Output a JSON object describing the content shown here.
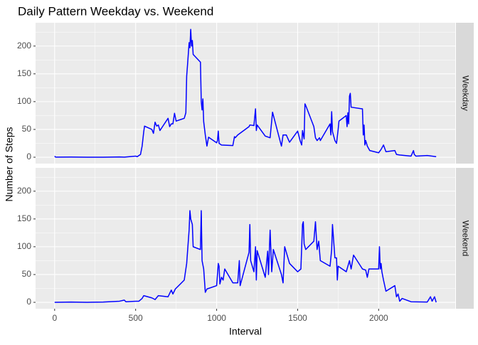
{
  "chart_data": {
    "type": "line",
    "title": "Daily Pattern Weekday vs. Weekend",
    "x_label": "Interval",
    "y_label": "Number of Steps",
    "xlim": [
      -117.75,
      2472.75
    ],
    "xticks": [
      0,
      500,
      1000,
      1500,
      2000
    ],
    "ylim": [
      -11.5,
      241.9
    ],
    "yticks": [
      0,
      50,
      100,
      150,
      200
    ],
    "grid": true,
    "series": [
      {
        "name": "Weekday",
        "color": "#0000ff",
        "x": [
          0,
          5,
          10,
          100,
          200,
          300,
          400,
          430,
          500,
          510,
          520,
          530,
          540,
          550,
          555,
          600,
          610,
          620,
          630,
          640,
          650,
          700,
          710,
          720,
          730,
          740,
          750,
          800,
          810,
          815,
          820,
          830,
          835,
          840,
          845,
          850,
          855,
          900,
          905,
          910,
          915,
          920,
          930,
          940,
          950,
          1000,
          1005,
          1010,
          1015,
          1030,
          1100,
          1110,
          1115,
          1130,
          1200,
          1205,
          1230,
          1240,
          1245,
          1250,
          1300,
          1330,
          1345,
          1400,
          1410,
          1430,
          1450,
          1500,
          1515,
          1525,
          1530,
          1540,
          1545,
          1550,
          1600,
          1610,
          1620,
          1635,
          1640,
          1700,
          1705,
          1710,
          1715,
          1730,
          1740,
          1750,
          1755,
          1800,
          1805,
          1810,
          1815,
          1820,
          1825,
          1830,
          1900,
          1905,
          1910,
          1915,
          1920,
          1930,
          1945,
          2000,
          2015,
          2030,
          2045,
          2100,
          2110,
          2130,
          2200,
          2215,
          2220,
          2230,
          2300,
          2330,
          2355
        ],
        "values": [
          2,
          0.4,
          0.2,
          0.4,
          0,
          0.1,
          0.5,
          0.2,
          2,
          1,
          3,
          5,
          20,
          46,
          56,
          50,
          43,
          63,
          56,
          58,
          48,
          70,
          55,
          60,
          60,
          79,
          65,
          70,
          80,
          146,
          165,
          206,
          197,
          230,
          200,
          210,
          185,
          171,
          100,
          85,
          105,
          64,
          40,
          20,
          36,
          26,
          30,
          47,
          25,
          22,
          21,
          37,
          35,
          40,
          55,
          58,
          57,
          87,
          48,
          58,
          38,
          35,
          81,
          20,
          40,
          40,
          27,
          47,
          30,
          22,
          48,
          33,
          96,
          93,
          55,
          35,
          30,
          35,
          30,
          60,
          40,
          82,
          46,
          30,
          25,
          50,
          65,
          75,
          55,
          80,
          60,
          110,
          115,
          90,
          87,
          40,
          58,
          22,
          30,
          20,
          12,
          8,
          14,
          22,
          10,
          12,
          5,
          4,
          2,
          12,
          5,
          2,
          3,
          2,
          1
        ]
      },
      {
        "name": "Weekend",
        "color": "#0000ff",
        "x": [
          0,
          100,
          200,
          300,
          400,
          430,
          440,
          500,
          520,
          540,
          550,
          600,
          620,
          640,
          700,
          720,
          730,
          745,
          800,
          815,
          830,
          835,
          840,
          850,
          855,
          900,
          905,
          910,
          920,
          930,
          940,
          1000,
          1005,
          1010,
          1015,
          1020,
          1030,
          1040,
          1050,
          1100,
          1130,
          1140,
          1145,
          1200,
          1205,
          1210,
          1230,
          1240,
          1245,
          1250,
          1300,
          1315,
          1320,
          1330,
          1340,
          1350,
          1400,
          1410,
          1420,
          1430,
          1450,
          1500,
          1520,
          1530,
          1535,
          1540,
          1550,
          1600,
          1610,
          1620,
          1630,
          1640,
          1700,
          1710,
          1715,
          1730,
          1740,
          1745,
          1750,
          1800,
          1820,
          1830,
          1845,
          1900,
          1920,
          1930,
          1940,
          2000,
          2005,
          2010,
          2015,
          2020,
          2030,
          2045,
          2100,
          2110,
          2120,
          2130,
          2145,
          2200,
          2300,
          2320,
          2330,
          2345,
          2355
        ],
        "values": [
          0,
          0.5,
          0,
          0.5,
          2,
          4,
          1,
          2,
          2,
          7,
          12,
          8,
          5,
          12,
          10,
          22,
          15,
          24,
          40,
          70,
          130,
          165,
          150,
          140,
          100,
          95,
          165,
          75,
          60,
          18,
          24,
          30,
          50,
          70,
          65,
          33,
          45,
          40,
          60,
          35,
          35,
          75,
          30,
          90,
          140,
          75,
          55,
          100,
          40,
          93,
          45,
          92,
          50,
          130,
          55,
          95,
          50,
          35,
          100,
          90,
          70,
          55,
          60,
          140,
          145,
          105,
          95,
          110,
          145,
          95,
          110,
          75,
          65,
          95,
          140,
          80,
          80,
          40,
          65,
          55,
          75,
          60,
          85,
          60,
          58,
          45,
          60,
          60,
          100,
          60,
          70,
          55,
          40,
          20,
          30,
          10,
          15,
          2,
          7,
          1,
          0.5,
          10,
          2,
          10,
          0
        ]
      }
    ]
  }
}
